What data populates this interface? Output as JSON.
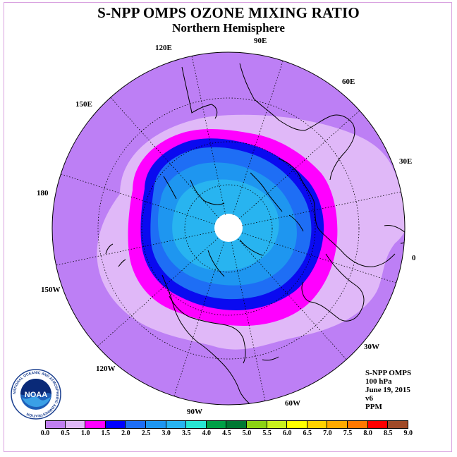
{
  "title": "S-NPP OMPS OZONE MIXING RATIO",
  "subtitle": "Northern Hemisphere",
  "longitude_labels": {
    "e90": "90E",
    "e60": "60E",
    "e30": "30E",
    "zero": "0",
    "w30": "30W",
    "w60": "60W",
    "w90": "90W",
    "w120": "120W",
    "w150": "150W",
    "d180": "180",
    "e150": "150E",
    "e120": "120E"
  },
  "info": {
    "instrument": "S-NPP OMPS",
    "level": "100 hPa",
    "date": "June 19, 2015",
    "version": "v6",
    "units": "PPM"
  },
  "logo": {
    "text": "NOAA",
    "ring_text": "NATIONAL OCEANIC AND ATMOSPHERIC ADMINISTRATION"
  },
  "colorbar": {
    "ticks": [
      "0.0",
      "0.5",
      "1.0",
      "1.5",
      "2.0",
      "2.5",
      "3.0",
      "3.5",
      "4.0",
      "4.5",
      "5.0",
      "5.5",
      "6.0",
      "6.5",
      "7.0",
      "7.5",
      "8.0",
      "8.5",
      "9.0"
    ],
    "colors": [
      "#c07ff0",
      "#e0b8f8",
      "#ff00ff",
      "#0000ff",
      "#1e6ef5",
      "#1e96f0",
      "#28b4f0",
      "#28e6d2",
      "#00a046",
      "#007832",
      "#8cd214",
      "#c8f01e",
      "#ffff00",
      "#ffd200",
      "#ffaa00",
      "#ff7800",
      "#ff0000",
      "#a04a28"
    ]
  },
  "map_colors": {
    "outer": "#bd7ff5",
    "band_0_5": "#e0b8f8",
    "band_1_0": "#ff00ff",
    "band_1_5": "#0a0af0",
    "band_2_0": "#1e6ef5",
    "band_2_5": "#1e96f0",
    "band_3_0": "#28b4f0",
    "pole": "#ffffff"
  }
}
